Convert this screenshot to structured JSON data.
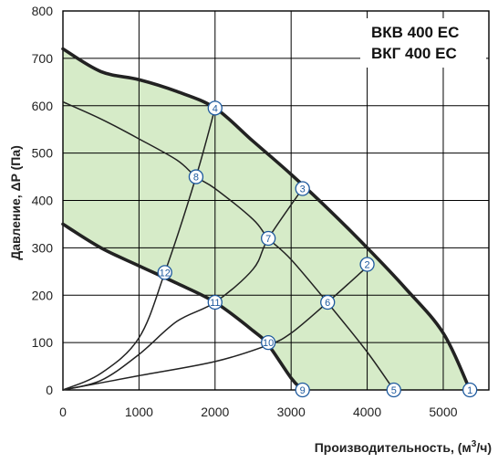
{
  "chart_data": {
    "type": "line",
    "title": "",
    "models": [
      "ВКВ 400 ЕС",
      "ВКГ 400 ЕС"
    ],
    "xlabel": "Производительность, (м³/ч)",
    "xlabel_parts": {
      "main": "Производительность, (м",
      "sup": "3",
      "end": "/ч)"
    },
    "ylabel": "Давление, ΔP (Па)",
    "xlim": [
      0,
      5600
    ],
    "ylim": [
      0,
      800
    ],
    "xticks": [
      0,
      1000,
      2000,
      3000,
      4000,
      5000
    ],
    "yticks": [
      0,
      100,
      200,
      300,
      400,
      500,
      600,
      700,
      800
    ],
    "grid": true,
    "colors": {
      "region": "#d6ebc8",
      "curve": "#222222",
      "marker_stroke": "#1e5a9e",
      "grid": "#000000"
    },
    "operating_region": [
      [
        0,
        720
      ],
      [
        500,
        672
      ],
      [
        1000,
        655
      ],
      [
        1500,
        630
      ],
      [
        2000,
        595
      ],
      [
        2500,
        525
      ],
      [
        3000,
        455
      ],
      [
        3500,
        380
      ],
      [
        4000,
        300
      ],
      [
        4500,
        215
      ],
      [
        5000,
        120
      ],
      [
        5350,
        0
      ],
      [
        3150,
        0
      ],
      [
        3000,
        25
      ],
      [
        2700,
        95
      ],
      [
        2500,
        125
      ],
      [
        2000,
        185
      ],
      [
        1500,
        225
      ],
      [
        1000,
        262
      ],
      [
        500,
        300
      ],
      [
        0,
        350
      ]
    ],
    "series": [
      {
        "id": "max",
        "values": [
          [
            0,
            720
          ],
          [
            500,
            672
          ],
          [
            1000,
            655
          ],
          [
            1500,
            630
          ],
          [
            2000,
            595
          ],
          [
            2500,
            525
          ],
          [
            3000,
            455
          ],
          [
            3500,
            380
          ],
          [
            4000,
            300
          ],
          [
            4500,
            215
          ],
          [
            5000,
            120
          ],
          [
            5350,
            0
          ]
        ]
      },
      {
        "id": "min",
        "values": [
          [
            0,
            350
          ],
          [
            500,
            300
          ],
          [
            1000,
            262
          ],
          [
            1500,
            225
          ],
          [
            2000,
            185
          ],
          [
            2500,
            125
          ],
          [
            2700,
            95
          ],
          [
            3000,
            25
          ],
          [
            3150,
            0
          ]
        ]
      },
      {
        "id": "mid",
        "values": [
          [
            0,
            608
          ],
          [
            500,
            572
          ],
          [
            1000,
            530
          ],
          [
            1500,
            485
          ],
          [
            1750,
            450
          ],
          [
            2000,
            425
          ],
          [
            2500,
            360
          ],
          [
            2700,
            320
          ],
          [
            3000,
            275
          ],
          [
            3500,
            180
          ],
          [
            4000,
            80
          ],
          [
            4350,
            0
          ]
        ]
      },
      {
        "id": "system-1",
        "values": [
          [
            0,
            0
          ],
          [
            500,
            35
          ],
          [
            1000,
            110
          ],
          [
            1340,
            248
          ],
          [
            1750,
            450
          ],
          [
            2000,
            595
          ]
        ]
      },
      {
        "id": "system-2",
        "values": [
          [
            0,
            0
          ],
          [
            500,
            20
          ],
          [
            1000,
            75
          ],
          [
            1500,
            145
          ],
          [
            2000,
            185
          ],
          [
            2500,
            255
          ],
          [
            2700,
            320
          ],
          [
            3150,
            425
          ]
        ]
      },
      {
        "id": "system-3",
        "values": [
          [
            0,
            0
          ],
          [
            1000,
            30
          ],
          [
            2000,
            60
          ],
          [
            2700,
            95
          ],
          [
            3000,
            120
          ],
          [
            3480,
            185
          ],
          [
            4000,
            260
          ]
        ]
      }
    ],
    "markers": [
      {
        "label": "1",
        "x": 5350,
        "y": 0
      },
      {
        "label": "2",
        "x": 4000,
        "y": 265
      },
      {
        "label": "3",
        "x": 3150,
        "y": 425
      },
      {
        "label": "4",
        "x": 2000,
        "y": 595
      },
      {
        "label": "5",
        "x": 4350,
        "y": 0
      },
      {
        "label": "6",
        "x": 3480,
        "y": 185
      },
      {
        "label": "7",
        "x": 2700,
        "y": 320
      },
      {
        "label": "8",
        "x": 1750,
        "y": 450
      },
      {
        "label": "9",
        "x": 3150,
        "y": 0
      },
      {
        "label": "10",
        "x": 2700,
        "y": 100
      },
      {
        "label": "11",
        "x": 2000,
        "y": 185
      },
      {
        "label": "12",
        "x": 1340,
        "y": 248
      }
    ]
  }
}
